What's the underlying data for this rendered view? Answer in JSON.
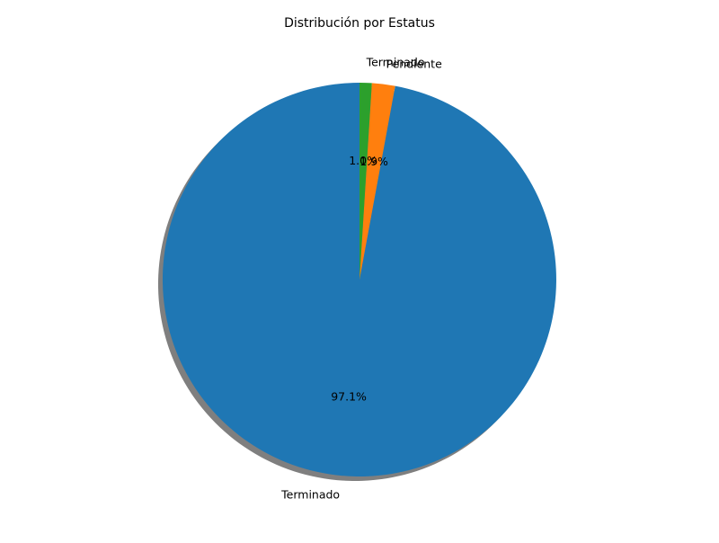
{
  "chart_data": {
    "type": "pie",
    "title": "Distribución por Estatus",
    "start_angle_deg": 90,
    "direction": "counterclockwise",
    "shadow": true,
    "slices": [
      {
        "label": "Terminado",
        "pct_label": "97.1%",
        "value": 97.1,
        "color": "#1f77b4"
      },
      {
        "label": "Pendiente",
        "pct_label": "1.9%",
        "value": 1.9,
        "color": "#ff7f0e"
      },
      {
        "label": "Terminado",
        "pct_label": "1.0%",
        "value": 1.0,
        "color": "#2ca02c"
      }
    ]
  }
}
